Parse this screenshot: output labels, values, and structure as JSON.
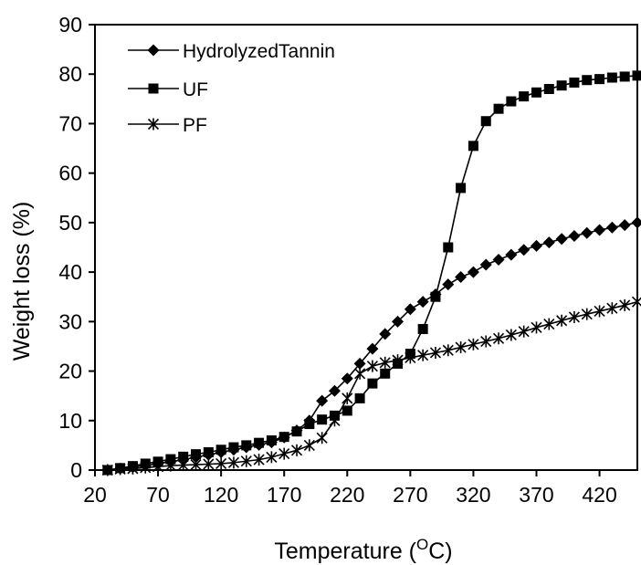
{
  "chart_data": {
    "type": "line",
    "title": "",
    "xlabel": "Temperature (",
    "xlabel_sup": "O",
    "xlabel_end": "C)",
    "ylabel": "Weight loss (%)",
    "xlim": [
      20,
      450
    ],
    "ylim": [
      0,
      90
    ],
    "xticks": [
      20,
      70,
      120,
      170,
      220,
      270,
      320,
      370,
      420
    ],
    "yticks": [
      0,
      10,
      20,
      30,
      40,
      50,
      60,
      70,
      80,
      90
    ],
    "grid": false,
    "legend_position": "top-left",
    "series": [
      {
        "name": "HydrolyzedTannin",
        "marker": "diamond",
        "x": [
          30,
          40,
          50,
          60,
          70,
          80,
          90,
          100,
          110,
          120,
          130,
          140,
          150,
          160,
          170,
          180,
          190,
          200,
          210,
          220,
          230,
          240,
          250,
          260,
          270,
          280,
          290,
          300,
          310,
          320,
          330,
          340,
          350,
          360,
          370,
          380,
          390,
          400,
          410,
          420,
          430,
          440,
          450
        ],
        "y": [
          0,
          0.3,
          0.6,
          0.9,
          1.3,
          1.7,
          2.1,
          2.6,
          3.1,
          3.6,
          4.1,
          4.6,
          5.1,
          5.6,
          6.6,
          8.0,
          10.0,
          14.0,
          16.0,
          18.5,
          21.5,
          24.5,
          27.5,
          30.0,
          32.5,
          34.0,
          35.5,
          37.5,
          39.0,
          40.0,
          41.5,
          42.5,
          43.5,
          44.5,
          45.3,
          46.0,
          46.7,
          47.3,
          47.9,
          48.5,
          49.0,
          49.5,
          50.0
        ]
      },
      {
        "name": "UF",
        "marker": "square",
        "x": [
          30,
          40,
          50,
          60,
          70,
          80,
          90,
          100,
          110,
          120,
          130,
          140,
          150,
          160,
          170,
          180,
          190,
          200,
          210,
          220,
          230,
          240,
          250,
          260,
          270,
          280,
          290,
          300,
          310,
          320,
          330,
          340,
          350,
          360,
          370,
          380,
          390,
          400,
          410,
          420,
          430,
          440,
          450
        ],
        "y": [
          0,
          0.4,
          0.8,
          1.3,
          1.7,
          2.2,
          2.7,
          3.2,
          3.6,
          4.1,
          4.6,
          5.0,
          5.5,
          6.0,
          6.7,
          7.8,
          9.3,
          10.2,
          11.0,
          12.0,
          14.5,
          17.5,
          19.5,
          21.5,
          23.5,
          28.5,
          35.0,
          45.0,
          57.0,
          65.5,
          70.5,
          73.0,
          74.5,
          75.5,
          76.3,
          77.0,
          77.7,
          78.3,
          78.8,
          79.0,
          79.3,
          79.5,
          79.7
        ]
      },
      {
        "name": "PF",
        "marker": "star",
        "x": [
          30,
          40,
          50,
          60,
          70,
          80,
          90,
          100,
          110,
          120,
          130,
          140,
          150,
          160,
          170,
          180,
          190,
          200,
          210,
          220,
          230,
          240,
          250,
          260,
          270,
          280,
          290,
          300,
          310,
          320,
          330,
          340,
          350,
          360,
          370,
          380,
          390,
          400,
          410,
          420,
          430,
          440,
          450
        ],
        "y": [
          0,
          0.2,
          0.3,
          0.5,
          0.7,
          0.9,
          1.0,
          1.1,
          1.2,
          1.3,
          1.5,
          1.8,
          2.1,
          2.6,
          3.3,
          4.0,
          5.0,
          6.5,
          10.0,
          14.5,
          19.5,
          21.0,
          21.7,
          22.2,
          22.7,
          23.2,
          23.7,
          24.2,
          24.8,
          25.4,
          26.0,
          26.6,
          27.3,
          28.0,
          28.8,
          29.5,
          30.2,
          30.9,
          31.5,
          32.1,
          32.7,
          33.3,
          34.0
        ]
      }
    ]
  }
}
